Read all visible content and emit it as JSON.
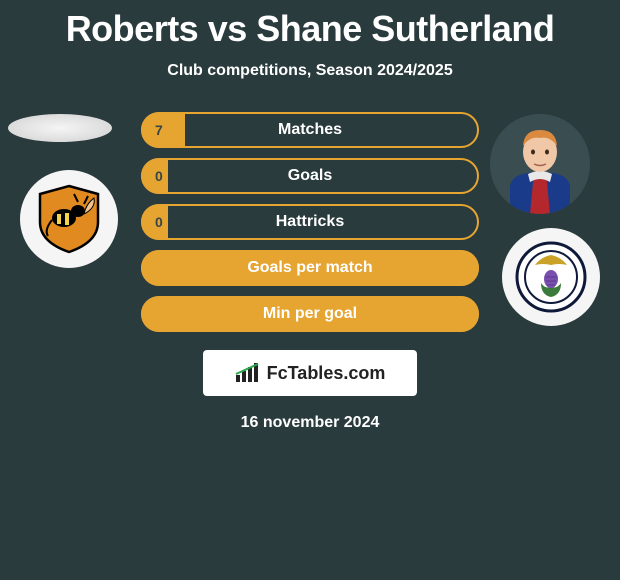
{
  "title": "Roberts vs Shane Sutherland",
  "subtitle": "Club competitions, Season 2024/2025",
  "date": "16 november 2024",
  "logo_text": "FcTables.com",
  "colors": {
    "background": "#2a3b3d",
    "accent": "#e6a431",
    "text": "#ffffff",
    "bar_value_text": "#364648",
    "logo_bg": "#ffffff",
    "logo_text": "#222222"
  },
  "stats": [
    {
      "label": "Matches",
      "value_left": "7",
      "fill_pct": 13
    },
    {
      "label": "Goals",
      "value_left": "0",
      "fill_pct": 8
    },
    {
      "label": "Hattricks",
      "value_left": "0",
      "fill_pct": 8
    },
    {
      "label": "Goals per match",
      "value_left": "",
      "fill_pct": 100
    },
    {
      "label": "Min per goal",
      "value_left": "",
      "fill_pct": 100
    }
  ],
  "left_badge": {
    "name": "alloa-athletic-badge",
    "bg": "#f5f5f5",
    "crest_bg": "#e08a1f",
    "crest_border": "#000000",
    "wasp_body": "#000000",
    "wasp_stripe": "#f2d34a"
  },
  "right_badge": {
    "name": "inverness-ct-badge",
    "bg": "#f5f5f5",
    "ring": "#0f1a3a",
    "eagle": "#c9a227",
    "thistle_leaf": "#3a7a3a",
    "thistle_flower": "#7a4fae"
  },
  "right_avatar": {
    "skin": "#f0c8a8",
    "hair": "#d98a3f",
    "shirt_blue": "#1a3b8a",
    "shirt_red": "#b3272d",
    "collar": "#e8e8e8"
  }
}
